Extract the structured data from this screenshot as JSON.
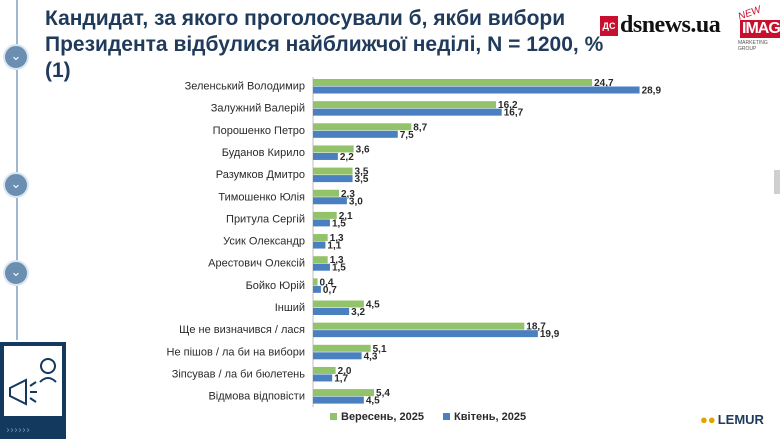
{
  "title": "Кандидат, за якого проголосували б, якби вибори Президента відбулися найближчої неділі, N = 1200, % (1)",
  "logos": {
    "dsnews_badge": "ДС",
    "dsnews": "dsnews.ua",
    "image_new": "NEW",
    "image_word": "IMAGE",
    "image_sub": "MARKETING GROUP",
    "lemur": "LEMUR"
  },
  "icons": {
    "rail": "chevron-down-icon",
    "promo": "megaphone-icon"
  },
  "chart_data": {
    "type": "bar",
    "orientation": "horizontal",
    "categories": [
      "Зеленський Володимир",
      "Залужний Валерій",
      "Порошенко Петро",
      "Буданов Кирило",
      "Разумков Дмитро",
      "Тимошенко Юлія",
      "Притула Сергій",
      "Усик Олександр",
      "Арестович Олексій",
      "Бойко Юрій",
      "Інший",
      "Ще не визначився / лася",
      "Не пішов / ла би на вибори",
      "Зіпсував / ла би бюлетень",
      "Відмова відповісти"
    ],
    "series": [
      {
        "name": "Вересень, 2025",
        "color": "#92c36a",
        "values": [
          24.7,
          16.2,
          8.7,
          3.6,
          3.5,
          2.3,
          2.1,
          1.3,
          1.3,
          0.4,
          4.5,
          18.7,
          5.1,
          2.0,
          5.4
        ],
        "labels": [
          "24,7",
          "16,2",
          "8,7",
          "3,6",
          "3,5",
          "2,3",
          "2,1",
          "1,3",
          "1,3",
          "0,4",
          "4,5",
          "18,7",
          "5,1",
          "2,0",
          "5,4"
        ]
      },
      {
        "name": "Квітень, 2025",
        "color": "#4a7fc0",
        "values": [
          28.9,
          16.7,
          7.5,
          2.2,
          3.5,
          3.0,
          1.5,
          1.1,
          1.5,
          0.7,
          3.2,
          19.9,
          4.3,
          1.7,
          4.5
        ],
        "labels": [
          "28,9",
          "16,7",
          "7,5",
          "2,2",
          "3,5",
          "3,0",
          "1,5",
          "1,1",
          "1,5",
          "0,7",
          "3,2",
          "19,9",
          "4,3",
          "1,7",
          "4,5"
        ]
      }
    ],
    "xlim": [
      0,
      30
    ],
    "grid": false,
    "legend_position": "bottom"
  }
}
